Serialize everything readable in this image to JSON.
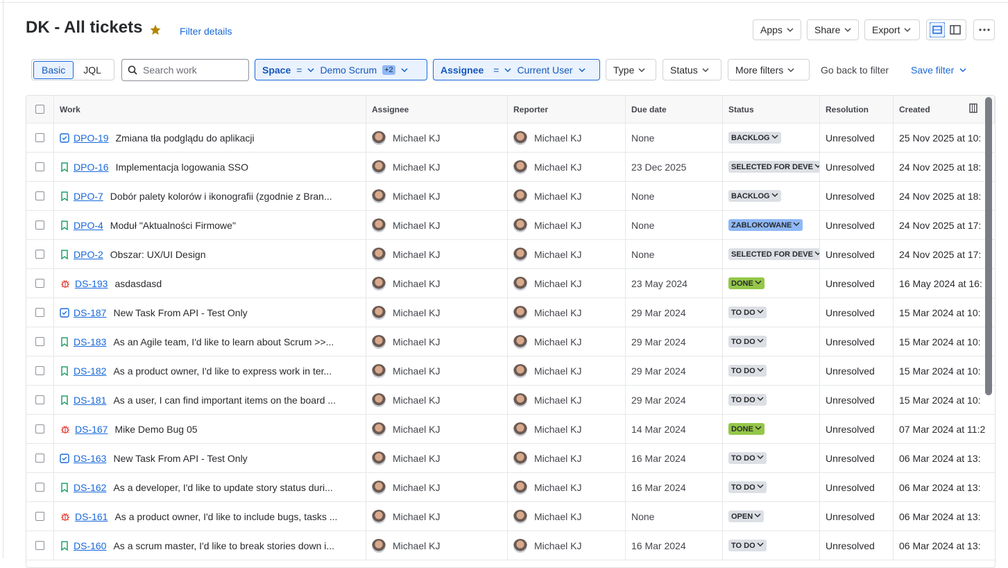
{
  "header": {
    "title": "DK - All tickets",
    "filter_details": "Filter details",
    "buttons": [
      "Apps",
      "Share",
      "Export"
    ]
  },
  "filters": {
    "modes": [
      "Basic",
      "JQL"
    ],
    "search_placeholder": "Search work",
    "space": {
      "label": "Space",
      "op": "=",
      "value": "Demo Scrum",
      "extra": "+2"
    },
    "assignee": {
      "label": "Assignee",
      "op": "=",
      "value": "Current User"
    },
    "dropdowns": [
      "Type",
      "Status",
      "More filters"
    ],
    "go_back": "Go back to filter",
    "save": "Save filter"
  },
  "table": {
    "columns": [
      "Work",
      "Assignee",
      "Reporter",
      "Due date",
      "Status",
      "Resolution",
      "Created"
    ],
    "rows": [
      {
        "type": "task",
        "key": "DPO-19",
        "summary": "Zmiana tła podglądu do aplikacji",
        "assignee": "Michael KJ",
        "reporter": "Michael KJ",
        "due": "None",
        "status": "BACKLOG",
        "status_color": "#dcdfe4",
        "resolution": "Unresolved",
        "created": "25 Nov 2025 at 10:"
      },
      {
        "type": "story",
        "key": "DPO-16",
        "summary": "Implementacja logowania SSO",
        "assignee": "Michael KJ",
        "reporter": "Michael KJ",
        "due": "23 Dec 2025",
        "status": "SELECTED FOR DEVE",
        "status_color": "#dcdfe4",
        "resolution": "Unresolved",
        "created": "24 Nov 2025 at 18:"
      },
      {
        "type": "story",
        "key": "DPO-7",
        "summary": "Dobór palety kolorów i ikonografii (zgodnie z Bran...",
        "assignee": "Michael KJ",
        "reporter": "Michael KJ",
        "due": "None",
        "status": "BACKLOG",
        "status_color": "#dcdfe4",
        "resolution": "Unresolved",
        "created": "24 Nov 2025 at 18:"
      },
      {
        "type": "story",
        "key": "DPO-4",
        "summary": "Moduł \"Aktualności Firmowe\"",
        "assignee": "Michael KJ",
        "reporter": "Michael KJ",
        "due": "None",
        "status": "ZABLOKOWANE",
        "status_color": "#8fb8f6",
        "resolution": "Unresolved",
        "created": "24 Nov 2025 at 17:"
      },
      {
        "type": "story",
        "key": "DPO-2",
        "summary": "Obszar: UX/UI Design",
        "assignee": "Michael KJ",
        "reporter": "Michael KJ",
        "due": "None",
        "status": "SELECTED FOR DEVE",
        "status_color": "#dcdfe4",
        "resolution": "Unresolved",
        "created": "24 Nov 2025 at 17:"
      },
      {
        "type": "bug",
        "key": "DS-193",
        "summary": "asdasdasd",
        "assignee": "Michael KJ",
        "reporter": "Michael KJ",
        "due": "23 May 2024",
        "status": "DONE",
        "status_color": "#94c748",
        "resolution": "Unresolved",
        "created": "16 May 2024 at 16:"
      },
      {
        "type": "task",
        "key": "DS-187",
        "summary": "New Task From API - Test Only",
        "assignee": "Michael KJ",
        "reporter": "Michael KJ",
        "due": "29 Mar 2024",
        "status": "TO DO",
        "status_color": "#dcdfe4",
        "resolution": "Unresolved",
        "created": "15 Mar 2024 at 10:"
      },
      {
        "type": "story",
        "key": "DS-183",
        "summary": "As an Agile team, I'd like to learn about Scrum >>...",
        "assignee": "Michael KJ",
        "reporter": "Michael KJ",
        "due": "29 Mar 2024",
        "status": "TO DO",
        "status_color": "#dcdfe4",
        "resolution": "Unresolved",
        "created": "15 Mar 2024 at 10:"
      },
      {
        "type": "story",
        "key": "DS-182",
        "summary": "As a product owner, I'd like to express work in ter...",
        "assignee": "Michael KJ",
        "reporter": "Michael KJ",
        "due": "29 Mar 2024",
        "status": "TO DO",
        "status_color": "#dcdfe4",
        "resolution": "Unresolved",
        "created": "15 Mar 2024 at 10:"
      },
      {
        "type": "story",
        "key": "DS-181",
        "summary": "As a user, I can find important items on the board ...",
        "assignee": "Michael KJ",
        "reporter": "Michael KJ",
        "due": "29 Mar 2024",
        "status": "TO DO",
        "status_color": "#dcdfe4",
        "resolution": "Unresolved",
        "created": "15 Mar 2024 at 10:"
      },
      {
        "type": "bug",
        "key": "DS-167",
        "summary": "Mike Demo Bug 05",
        "assignee": "Michael KJ",
        "reporter": "Michael KJ",
        "due": "14 Mar 2024",
        "status": "DONE",
        "status_color": "#94c748",
        "resolution": "Unresolved",
        "created": "07 Mar 2024 at 11:2"
      },
      {
        "type": "task",
        "key": "DS-163",
        "summary": "New Task From API - Test Only",
        "assignee": "Michael KJ",
        "reporter": "Michael KJ",
        "due": "16 Mar 2024",
        "status": "TO DO",
        "status_color": "#dcdfe4",
        "resolution": "Unresolved",
        "created": "06 Mar 2024 at 13:"
      },
      {
        "type": "story",
        "key": "DS-162",
        "summary": "As a developer, I'd like to update story status duri...",
        "assignee": "Michael KJ",
        "reporter": "Michael KJ",
        "due": "16 Mar 2024",
        "status": "TO DO",
        "status_color": "#dcdfe4",
        "resolution": "Unresolved",
        "created": "06 Mar 2024 at 13:"
      },
      {
        "type": "bug",
        "key": "DS-161",
        "summary": "As a product owner, I'd like to include bugs, tasks ...",
        "assignee": "Michael KJ",
        "reporter": "Michael KJ",
        "due": "None",
        "status": "OPEN",
        "status_color": "#dcdfe4",
        "resolution": "Unresolved",
        "created": "06 Mar 2024 at 13:"
      },
      {
        "type": "story",
        "key": "DS-160",
        "summary": "As a scrum master, I'd like to break stories down i...",
        "assignee": "Michael KJ",
        "reporter": "Michael KJ",
        "due": "16 Mar 2024",
        "status": "TO DO",
        "status_color": "#dcdfe4",
        "resolution": "Unresolved",
        "created": "06 Mar 2024 at 13:"
      }
    ]
  }
}
